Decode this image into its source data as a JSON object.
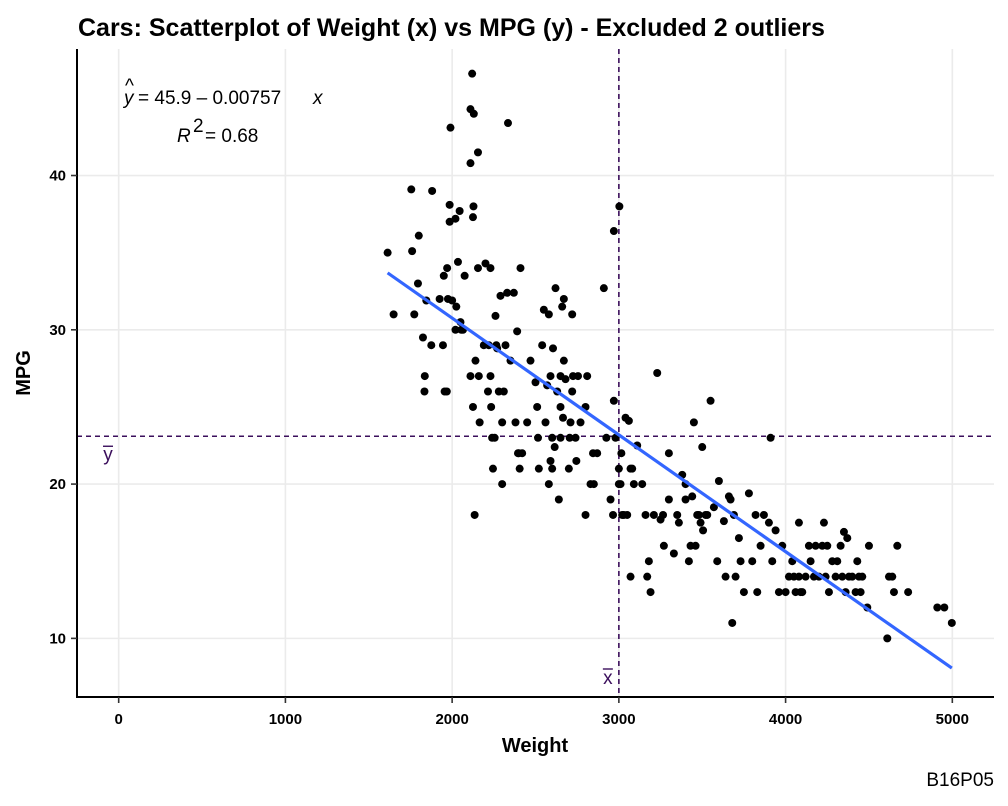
{
  "chart_data": {
    "type": "scatter",
    "title": "Cars: Scatterplot of Weight (x) vs MPG (y) - Excluded 2 outliers",
    "xlabel": "Weight",
    "ylabel": "MPG",
    "caption": "B16P05",
    "xlim": [
      -250,
      5250
    ],
    "ylim": [
      6.2,
      48.2
    ],
    "xticks": [
      0,
      1000,
      2000,
      3000,
      4000,
      5000
    ],
    "yticks": [
      10,
      20,
      30,
      40
    ],
    "grid": true,
    "regression": {
      "intercept": 45.9,
      "slope": -0.00757,
      "x_range": [
        1613,
        4997
      ],
      "equation_text": "= 45.9 – 0.00757",
      "r2_text": "= 0.68",
      "color": "#3366ff"
    },
    "mean_lines": {
      "x_mean": 3000,
      "y_mean": 23.1,
      "x_label": "x",
      "y_label": "y",
      "color": "#3b0f5c"
    },
    "points": [
      [
        1613,
        35
      ],
      [
        1649,
        31
      ],
      [
        1755,
        39.1
      ],
      [
        1760,
        35.1
      ],
      [
        1773,
        31
      ],
      [
        1795,
        33
      ],
      [
        1800,
        36.1
      ],
      [
        1825,
        29.5
      ],
      [
        1836,
        27
      ],
      [
        1834,
        26
      ],
      [
        1845,
        31.9
      ],
      [
        1875,
        29
      ],
      [
        1880,
        39
      ],
      [
        1925,
        32
      ],
      [
        1945,
        29
      ],
      [
        1950,
        33.5
      ],
      [
        1955,
        26
      ],
      [
        1968,
        26
      ],
      [
        1970,
        34
      ],
      [
        1975,
        32
      ],
      [
        1985,
        38.1
      ],
      [
        1985,
        37
      ],
      [
        1990,
        43.1
      ],
      [
        2000,
        31.9
      ],
      [
        2020,
        30
      ],
      [
        2020,
        37.2
      ],
      [
        2025,
        31.5
      ],
      [
        2035,
        34.4
      ],
      [
        2045,
        37.7
      ],
      [
        2050,
        30.5
      ],
      [
        2055,
        30
      ],
      [
        2065,
        30
      ],
      [
        2075,
        33.5
      ],
      [
        2110,
        44.3
      ],
      [
        2110,
        40.8
      ],
      [
        2110,
        27
      ],
      [
        2120,
        46.6
      ],
      [
        2125,
        37.3
      ],
      [
        2128,
        38
      ],
      [
        2130,
        44
      ],
      [
        2125,
        25
      ],
      [
        2135,
        18
      ],
      [
        2140,
        28
      ],
      [
        2155,
        41.5
      ],
      [
        2155,
        34
      ],
      [
        2160,
        27
      ],
      [
        2165,
        24
      ],
      [
        2190,
        29
      ],
      [
        2200,
        34.3
      ],
      [
        2215,
        26
      ],
      [
        2220,
        29
      ],
      [
        2230,
        34
      ],
      [
        2230,
        27
      ],
      [
        2234,
        25
      ],
      [
        2240,
        23
      ],
      [
        2245,
        21
      ],
      [
        2255,
        23
      ],
      [
        2260,
        30.9
      ],
      [
        2265,
        29
      ],
      [
        2270,
        28.8
      ],
      [
        2280,
        26
      ],
      [
        2290,
        32.2
      ],
      [
        2300,
        24
      ],
      [
        2300,
        20
      ],
      [
        2310,
        26
      ],
      [
        2320,
        29
      ],
      [
        2330,
        32.4
      ],
      [
        2335,
        43.4
      ],
      [
        2350,
        28
      ],
      [
        2370,
        32.4
      ],
      [
        2380,
        24
      ],
      [
        2390,
        29.9
      ],
      [
        2395,
        22
      ],
      [
        2400,
        22
      ],
      [
        2410,
        34
      ],
      [
        2405,
        21
      ],
      [
        2420,
        22
      ],
      [
        2450,
        24
      ],
      [
        2470,
        28
      ],
      [
        2500,
        26.6
      ],
      [
        2510,
        25
      ],
      [
        2515,
        23
      ],
      [
        2520,
        21
      ],
      [
        2540,
        29
      ],
      [
        2550,
        31.3
      ],
      [
        2560,
        24
      ],
      [
        2570,
        26.4
      ],
      [
        2580,
        31
      ],
      [
        2590,
        27
      ],
      [
        2580,
        20
      ],
      [
        2590,
        21.5
      ],
      [
        2600,
        23
      ],
      [
        2600,
        21
      ],
      [
        2605,
        28.8
      ],
      [
        2615,
        22.4
      ],
      [
        2620,
        32.7
      ],
      [
        2630,
        26
      ],
      [
        2640,
        19
      ],
      [
        2650,
        25
      ],
      [
        2650,
        23
      ],
      [
        2650,
        27
      ],
      [
        2660,
        31.5
      ],
      [
        2665,
        24.3
      ],
      [
        2670,
        28
      ],
      [
        2670,
        32
      ],
      [
        2680,
        26.8
      ],
      [
        2700,
        21
      ],
      [
        2705,
        23
      ],
      [
        2710,
        24
      ],
      [
        2720,
        31
      ],
      [
        2720,
        26
      ],
      [
        2725,
        27
      ],
      [
        2740,
        23
      ],
      [
        2745,
        21.5
      ],
      [
        2755,
        27
      ],
      [
        2770,
        24
      ],
      [
        2800,
        18
      ],
      [
        2800,
        25
      ],
      [
        2810,
        27
      ],
      [
        2830,
        20
      ],
      [
        2845,
        22
      ],
      [
        2850,
        20
      ],
      [
        2870,
        22
      ],
      [
        2910,
        32.7
      ],
      [
        2925,
        23
      ],
      [
        2950,
        19
      ],
      [
        2965,
        18
      ],
      [
        2970,
        25.4
      ],
      [
        2970,
        36.4
      ],
      [
        2980,
        23
      ],
      [
        3000,
        20
      ],
      [
        3000,
        21
      ],
      [
        3003,
        38
      ],
      [
        3010,
        20
      ],
      [
        3015,
        22
      ],
      [
        3020,
        18
      ],
      [
        3030,
        18
      ],
      [
        3040,
        24.3
      ],
      [
        3050,
        18
      ],
      [
        3060,
        24.1
      ],
      [
        3070,
        21
      ],
      [
        3070,
        14
      ],
      [
        3080,
        21
      ],
      [
        3090,
        20
      ],
      [
        3110,
        22.5
      ],
      [
        3140,
        20
      ],
      [
        3160,
        18
      ],
      [
        3170,
        14
      ],
      [
        3180,
        15
      ],
      [
        3190,
        13
      ],
      [
        3210,
        18
      ],
      [
        3230,
        27.2
      ],
      [
        3250,
        17.7
      ],
      [
        3265,
        18
      ],
      [
        3270,
        16
      ],
      [
        3300,
        22
      ],
      [
        3300,
        19
      ],
      [
        3330,
        15.5
      ],
      [
        3350,
        18
      ],
      [
        3360,
        17.5
      ],
      [
        3380,
        20.6
      ],
      [
        3400,
        20
      ],
      [
        3400,
        19
      ],
      [
        3420,
        15
      ],
      [
        3430,
        16
      ],
      [
        3440,
        19.2
      ],
      [
        3450,
        24
      ],
      [
        3460,
        16
      ],
      [
        3470,
        18
      ],
      [
        3480,
        18
      ],
      [
        3490,
        17.5
      ],
      [
        3500,
        22.4
      ],
      [
        3505,
        17
      ],
      [
        3520,
        18
      ],
      [
        3530,
        18
      ],
      [
        3550,
        25.4
      ],
      [
        3570,
        18.5
      ],
      [
        3590,
        15
      ],
      [
        3600,
        20.2
      ],
      [
        3630,
        17.6
      ],
      [
        3640,
        14
      ],
      [
        3660,
        19.2
      ],
      [
        3670,
        19
      ],
      [
        3680,
        11
      ],
      [
        3690,
        18
      ],
      [
        3700,
        14
      ],
      [
        3720,
        16.5
      ],
      [
        3730,
        15
      ],
      [
        3750,
        13
      ],
      [
        3780,
        19.4
      ],
      [
        3800,
        15
      ],
      [
        3820,
        18
      ],
      [
        3830,
        13
      ],
      [
        3850,
        16
      ],
      [
        3870,
        18
      ],
      [
        3900,
        17.5
      ],
      [
        3910,
        23
      ],
      [
        3920,
        15
      ],
      [
        3940,
        17
      ],
      [
        3960,
        13
      ],
      [
        3980,
        16
      ],
      [
        4000,
        13
      ],
      [
        4020,
        14
      ],
      [
        4040,
        15
      ],
      [
        4050,
        14
      ],
      [
        4060,
        13
      ],
      [
        4080,
        17.5
      ],
      [
        4080,
        14
      ],
      [
        4090,
        13
      ],
      [
        4100,
        13
      ],
      [
        4120,
        14
      ],
      [
        4140,
        16
      ],
      [
        4150,
        15
      ],
      [
        4170,
        14
      ],
      [
        4180,
        16
      ],
      [
        4200,
        14
      ],
      [
        4220,
        16
      ],
      [
        4230,
        17.5
      ],
      [
        4240,
        14
      ],
      [
        4250,
        16
      ],
      [
        4260,
        13
      ],
      [
        4280,
        15
      ],
      [
        4300,
        14
      ],
      [
        4310,
        15
      ],
      [
        4330,
        16
      ],
      [
        4340,
        14
      ],
      [
        4350,
        16.9
      ],
      [
        4360,
        13
      ],
      [
        4370,
        16.5
      ],
      [
        4380,
        14
      ],
      [
        4400,
        14
      ],
      [
        4420,
        13
      ],
      [
        4430,
        15
      ],
      [
        4440,
        14
      ],
      [
        4450,
        13
      ],
      [
        4460,
        14
      ],
      [
        4490,
        12
      ],
      [
        4500,
        16
      ],
      [
        4610,
        10
      ],
      [
        4620,
        14
      ],
      [
        4640,
        14
      ],
      [
        4650,
        13
      ],
      [
        4670,
        16
      ],
      [
        4735,
        13
      ],
      [
        4910,
        12
      ],
      [
        4952,
        12
      ],
      [
        4997,
        11
      ]
    ]
  }
}
